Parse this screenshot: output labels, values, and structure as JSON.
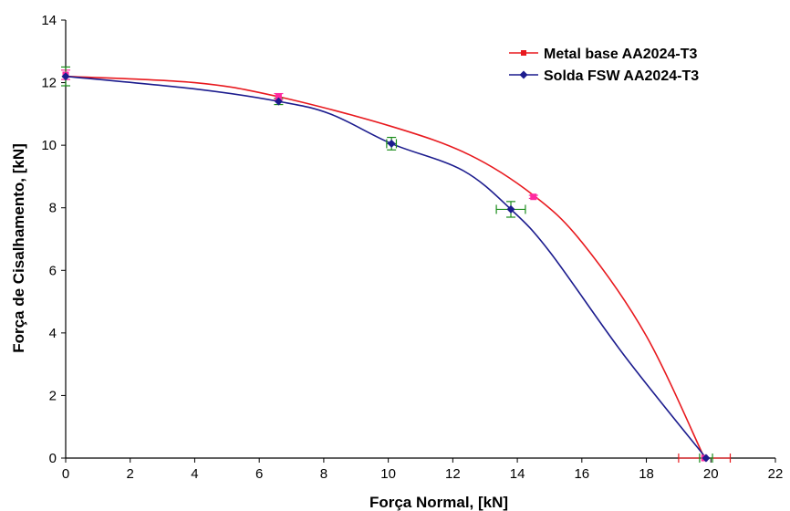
{
  "chart_data": {
    "type": "line",
    "xlabel": "Força Normal, [kN]",
    "ylabel": "Força de Cisalhamento, [kN]",
    "xlim": [
      0,
      22
    ],
    "ylim": [
      0,
      14
    ],
    "x_ticks": [
      0,
      2,
      4,
      6,
      8,
      10,
      12,
      14,
      16,
      18,
      20,
      22
    ],
    "y_ticks": [
      0,
      2,
      4,
      6,
      8,
      10,
      12,
      14
    ],
    "grid": false,
    "legend_position": "top-right",
    "series": [
      {
        "name": "Metal base AA2024-T3",
        "color": "#e8191e",
        "marker": "square",
        "marker_color": "#ff2aa0",
        "curve_x": [
          0,
          4,
          6.6,
          10.1,
          12.5,
          14.5,
          16,
          18,
          19.8
        ],
        "curve_y": [
          12.2,
          12.0,
          11.55,
          10.6,
          9.7,
          8.4,
          6.9,
          3.9,
          0
        ],
        "points": [
          {
            "x": 0,
            "y": 12.25,
            "yerr": 0.15
          },
          {
            "x": 6.6,
            "y": 11.55,
            "yerr": 0.1
          },
          {
            "x": 14.5,
            "y": 8.35,
            "yerr": 0.05
          },
          {
            "x": 19.8,
            "y": 0.0,
            "xerr": 0.8
          }
        ]
      },
      {
        "name": "Solda FSW AA2024-T3",
        "color": "#1c1c8e",
        "marker": "diamond",
        "marker_color": "#1c1c8e",
        "curve_x": [
          0,
          4,
          6.6,
          8.2,
          10.1,
          12.3,
          13.8,
          15,
          17.3,
          19.85
        ],
        "curve_y": [
          12.2,
          11.8,
          11.4,
          11.0,
          10.05,
          9.2,
          7.95,
          6.6,
          3.3,
          0
        ],
        "points": [
          {
            "x": 0,
            "y": 12.2,
            "yerr": 0.3
          },
          {
            "x": 6.6,
            "y": 11.4,
            "yerr": 0.1
          },
          {
            "x": 10.1,
            "y": 10.05,
            "yerr": 0.2,
            "xerr": 0.15
          },
          {
            "x": 13.8,
            "y": 7.95,
            "yerr": 0.25,
            "xerr": 0.45
          },
          {
            "x": 19.85,
            "y": 0.0,
            "xerr": 0.2
          }
        ]
      }
    ],
    "errorbar_color": "#1a8c1a"
  }
}
